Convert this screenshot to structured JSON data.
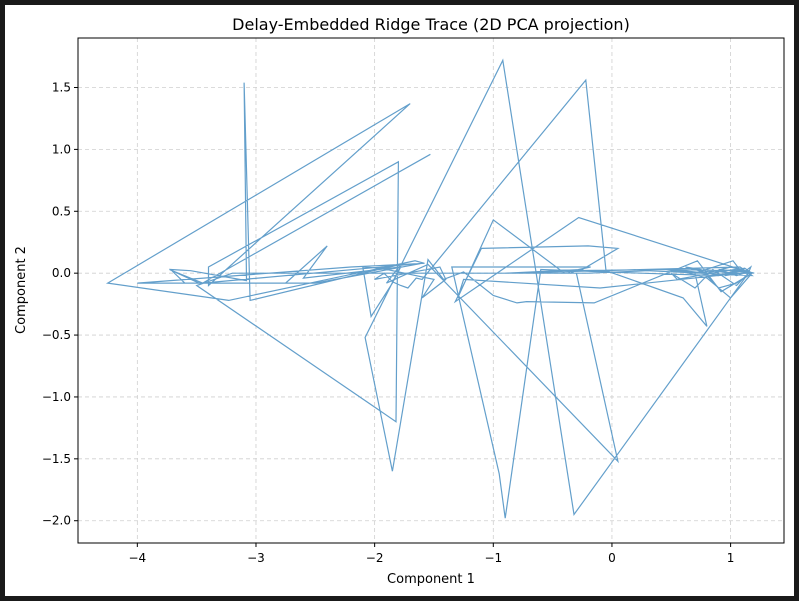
{
  "chart_data": {
    "type": "line",
    "title": "Delay-Embedded Ridge Trace (2D PCA projection)",
    "xlabel": "Component 1",
    "ylabel": "Component 2",
    "xlim": [
      -4.5,
      1.45
    ],
    "ylim": [
      -2.18,
      1.9
    ],
    "xticks": [
      -4,
      -3,
      -2,
      -1,
      0,
      1
    ],
    "yticks": [
      -2.0,
      -1.5,
      -1.0,
      -0.5,
      0.0,
      0.5,
      1.0,
      1.5
    ],
    "xtick_labels": [
      "−4",
      "−3",
      "−2",
      "−1",
      "0",
      "1"
    ],
    "ytick_labels": [
      "−2.0",
      "−1.5",
      "−1.0",
      "−0.5",
      "0.0",
      "0.5",
      "1.0",
      "1.5"
    ],
    "grid": true,
    "line_color": "#5b9ac8",
    "x": [
      -1.53,
      -3.45,
      -3.73,
      -3.48,
      -3.9,
      -4.0,
      -2.2,
      -1.58,
      -1.66,
      -3.23,
      -4.25,
      -1.7,
      -3.4,
      -3.4,
      -1.8,
      -1.82,
      -3.5,
      -3.2,
      -1.1,
      -0.3,
      0.05,
      -1.55,
      -1.9,
      -1.78,
      -1.97,
      -3.05,
      -3.1,
      -3.08,
      -3.55,
      -3.72,
      -3.6,
      -3.2,
      -2.5,
      -1.6,
      -3.45,
      -3.62,
      -2.75,
      -2.4,
      -2.6,
      -1.78,
      -1.85,
      -2.03,
      -2.1,
      -1.95,
      -1.5,
      -1.6,
      -1.4,
      -1.45,
      -2.0,
      -1.92,
      -1.85,
      -1.78,
      -1.72,
      -1.65,
      -1.6,
      -0.22,
      -0.05,
      0.6,
      0.8,
      0.7,
      1.02,
      1.1,
      1.17,
      1.15,
      1.05,
      0.85,
      0.7,
      0.5,
      0.55,
      0.96,
      1.12,
      1.18,
      1.0,
      0.8,
      0.65,
      0.45,
      1.1,
      1.18,
      1.05,
      0.9,
      0.75,
      0.62,
      0.85,
      1.15,
      -0.32,
      -0.92,
      -2.08,
      -1.85,
      -1.55,
      -1.42,
      -1.25,
      -1.0,
      -0.8,
      -0.72,
      -0.15,
      0.72,
      0.92,
      1.18,
      -0.28,
      -1.32,
      -1.1,
      -0.2,
      0.05,
      -0.25,
      -0.9,
      1.08,
      1.18,
      0.3,
      -0.2,
      -0.4,
      -1.0,
      -1.3,
      -1.25,
      -0.1,
      1.08,
      1.16,
      0.4,
      -0.38,
      -0.35,
      -0.28,
      -0.18,
      -1.35,
      -0.95,
      -0.9,
      -0.6,
      0.25,
      0.9,
      1.12,
      1.0,
      0.85,
      0.7,
      0.5,
      0.8,
      1.0,
      1.2,
      1.1,
      0.95,
      1.15,
      1.05,
      0.9,
      1.12,
      1.18
    ],
    "y": [
      0.96,
      -0.08,
      0.03,
      -0.08,
      -0.08,
      -0.08,
      0.05,
      0.08,
      0.1,
      -0.22,
      -0.08,
      1.37,
      -0.1,
      0.05,
      0.9,
      -1.2,
      -0.1,
      0.0,
      0.0,
      0.0,
      -1.52,
      0.07,
      -0.08,
      0.07,
      0.03,
      -0.22,
      1.54,
      -0.06,
      0.02,
      0.03,
      -0.08,
      -0.08,
      -0.08,
      0.08,
      -0.08,
      -0.08,
      -0.08,
      0.22,
      -0.04,
      0.05,
      -0.08,
      -0.35,
      0.05,
      0.04,
      -0.05,
      -0.2,
      -0.05,
      0.05,
      -0.05,
      0.0,
      -0.07,
      -0.1,
      -0.12,
      -0.04,
      -0.05,
      1.56,
      0.02,
      -0.2,
      -0.43,
      0.0,
      0.1,
      0.0,
      0.05,
      0.0,
      -0.1,
      0.03,
      -0.12,
      0.0,
      -0.05,
      0.02,
      0.04,
      0.0,
      -0.2,
      -0.04,
      0.0,
      0.03,
      0.02,
      0.0,
      -0.08,
      -0.12,
      0.03,
      0.05,
      -0.01,
      0.0,
      -1.95,
      1.72,
      -0.52,
      -1.6,
      0.11,
      -0.05,
      0.01,
      -0.18,
      -0.24,
      -0.23,
      -0.24,
      0.1,
      -0.15,
      0.0,
      0.45,
      -0.23,
      0.2,
      0.22,
      0.2,
      0.03,
      0.0,
      0.05,
      -0.02,
      0.02,
      0.0,
      0.0,
      0.43,
      -0.2,
      -0.05,
      -0.12,
      0.0,
      0.02,
      0.03,
      0.02,
      0.0,
      0.03,
      0.05,
      0.05,
      -1.62,
      -1.98,
      0.03,
      0.0,
      -0.02,
      0.04,
      0.0,
      0.02,
      0.0,
      0.03,
      0.0,
      0.05,
      0.0,
      0.02,
      -0.02,
      0.01,
      -0.02,
      0.03,
      0.01,
      0.0
    ]
  }
}
